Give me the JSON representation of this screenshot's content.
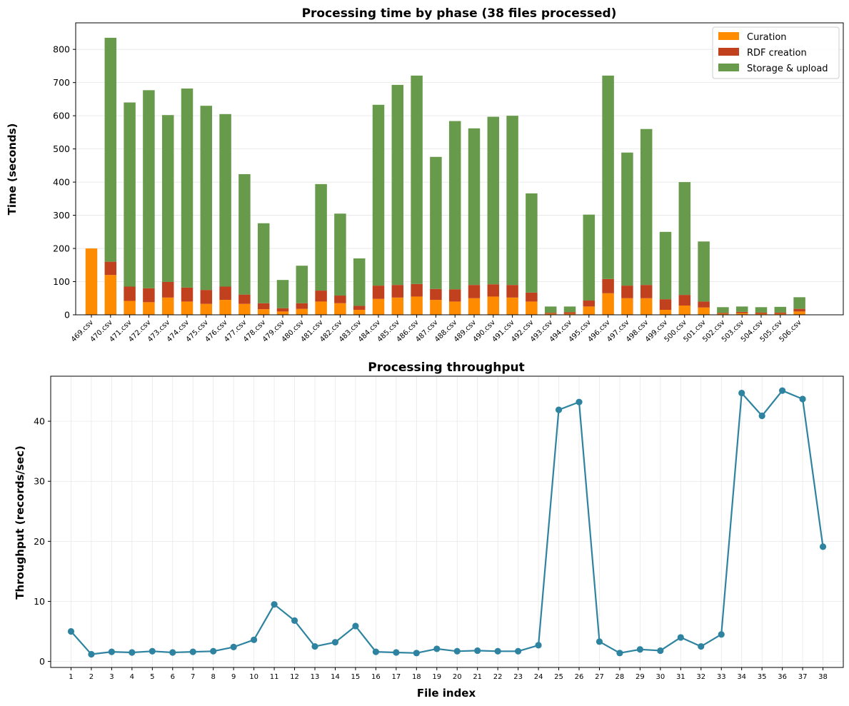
{
  "colors": {
    "curation": "#ff8c00",
    "rdf": "#c1401e",
    "storage": "#679a4b",
    "line": "#2e84a0"
  },
  "chart_data": [
    {
      "type": "bar",
      "stacked": true,
      "title": "Processing time by phase (38 files processed)",
      "xlabel": "",
      "ylabel": "Time (seconds)",
      "ylim": [
        0,
        880
      ],
      "yticks": [
        0,
        100,
        200,
        300,
        400,
        500,
        600,
        700,
        800
      ],
      "grid": "y",
      "legend_position": "top-right",
      "categories": [
        "469.csv",
        "470.csv",
        "471.csv",
        "472.csv",
        "473.csv",
        "474.csv",
        "475.csv",
        "476.csv",
        "477.csv",
        "478.csv",
        "479.csv",
        "480.csv",
        "481.csv",
        "482.csv",
        "483.csv",
        "484.csv",
        "485.csv",
        "486.csv",
        "487.csv",
        "488.csv",
        "489.csv",
        "490.csv",
        "491.csv",
        "492.csv",
        "493.csv",
        "494.csv",
        "495.csv",
        "496.csv",
        "497.csv",
        "498.csv",
        "499.csv",
        "500.csv",
        "501.csv",
        "502.csv",
        "503.csv",
        "504.csv",
        "505.csv",
        "506.csv"
      ],
      "series": [
        {
          "name": "Curation",
          "values": [
            200,
            120,
            42,
            38,
            52,
            40,
            33,
            45,
            33,
            17,
            10,
            18,
            40,
            35,
            15,
            48,
            52,
            55,
            45,
            40,
            50,
            55,
            52,
            40,
            3,
            3,
            25,
            65,
            50,
            50,
            15,
            28,
            22,
            3,
            5,
            3,
            3,
            10
          ]
        },
        {
          "name": "RDF creation",
          "values": [
            0,
            40,
            43,
            42,
            47,
            42,
            42,
            40,
            28,
            18,
            10,
            17,
            33,
            23,
            12,
            40,
            38,
            38,
            33,
            37,
            40,
            37,
            38,
            27,
            3,
            5,
            18,
            43,
            38,
            40,
            32,
            32,
            18,
            3,
            4,
            4,
            4,
            8
          ]
        },
        {
          "name": "Storage & upload",
          "values": [
            0,
            675,
            555,
            597,
            503,
            600,
            555,
            520,
            363,
            241,
            85,
            113,
            321,
            247,
            143,
            545,
            603,
            628,
            398,
            507,
            472,
            505,
            510,
            299,
            19,
            17,
            259,
            613,
            401,
            470,
            203,
            340,
            181,
            17,
            16,
            16,
            17,
            35
          ]
        }
      ]
    },
    {
      "type": "line",
      "title": "Processing throughput",
      "xlabel": "File index",
      "ylabel": "Throughput (records/sec)",
      "ylim": [
        -1,
        47.5
      ],
      "yticks": [
        0,
        10,
        20,
        30,
        40
      ],
      "xlim": [
        0,
        39
      ],
      "grid": "both",
      "x": [
        1,
        2,
        3,
        4,
        5,
        6,
        7,
        8,
        9,
        10,
        11,
        12,
        13,
        14,
        15,
        16,
        17,
        18,
        19,
        20,
        21,
        22,
        23,
        24,
        25,
        26,
        27,
        28,
        29,
        30,
        31,
        32,
        33,
        34,
        35,
        36,
        37,
        38
      ],
      "values": [
        5.0,
        1.2,
        1.6,
        1.5,
        1.7,
        1.5,
        1.6,
        1.7,
        2.4,
        3.6,
        9.5,
        6.8,
        2.5,
        3.2,
        5.9,
        1.6,
        1.5,
        1.4,
        2.1,
        1.7,
        1.8,
        1.7,
        1.7,
        2.7,
        41.9,
        43.2,
        3.3,
        1.4,
        2.0,
        1.8,
        4.0,
        2.5,
        4.5,
        44.7,
        40.9,
        45.1,
        43.7,
        19.1
      ]
    }
  ]
}
